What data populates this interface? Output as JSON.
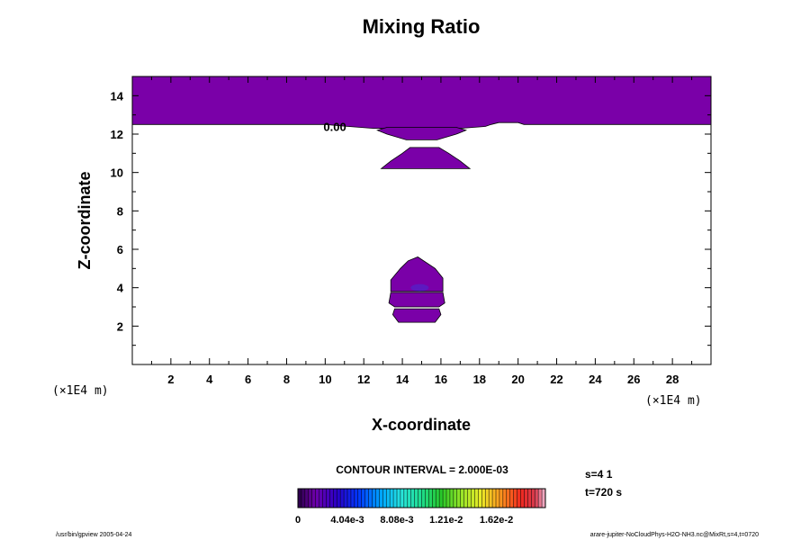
{
  "chart_data": {
    "type": "contour",
    "title": "Mixing Ratio",
    "xlabel": "X-coordinate",
    "ylabel": "Z-coordinate",
    "x_unit": "(×1E4 m)",
    "z_unit": "(×1E4 m)",
    "xlim": [
      0,
      30
    ],
    "ylim": [
      0,
      15
    ],
    "x_ticks": [
      2,
      4,
      6,
      8,
      10,
      12,
      14,
      16,
      18,
      20,
      22,
      24,
      26,
      28
    ],
    "y_ticks": [
      2,
      4,
      6,
      8,
      10,
      12,
      14
    ],
    "contour_label": "0.00",
    "contour_label_pos": [
      10.5,
      12.4
    ],
    "fill_color": "#7a00a8",
    "regions": [
      {
        "name": "upper-layer",
        "points": [
          [
            0,
            15
          ],
          [
            30,
            15
          ],
          [
            30,
            12.5
          ],
          [
            20.3,
            12.5
          ],
          [
            20,
            12.6
          ],
          [
            19,
            12.6
          ],
          [
            18.6,
            12.5
          ],
          [
            18.3,
            12.4
          ],
          [
            17,
            12.3
          ],
          [
            12.5,
            12.3
          ],
          [
            11.2,
            12.4
          ],
          [
            10,
            12.5
          ],
          [
            0,
            12.5
          ]
        ]
      },
      {
        "name": "band-12",
        "points": [
          [
            12.7,
            12.2
          ],
          [
            13.2,
            12.35
          ],
          [
            16.8,
            12.35
          ],
          [
            17.3,
            12.2
          ],
          [
            16.8,
            12.0
          ],
          [
            15.8,
            11.7
          ],
          [
            14.2,
            11.7
          ],
          [
            13.2,
            12.0
          ]
        ]
      },
      {
        "name": "band-10",
        "points": [
          [
            12.9,
            10.2
          ],
          [
            13.4,
            10.6
          ],
          [
            14.0,
            11.0
          ],
          [
            14.4,
            11.3
          ],
          [
            15.9,
            11.3
          ],
          [
            16.4,
            11.0
          ],
          [
            17.0,
            10.6
          ],
          [
            17.5,
            10.2
          ]
        ]
      },
      {
        "name": "cell-upper",
        "points": [
          [
            13.4,
            3.8
          ],
          [
            13.4,
            4.4
          ],
          [
            13.9,
            5.0
          ],
          [
            14.3,
            5.4
          ],
          [
            14.8,
            5.6
          ],
          [
            15.7,
            5.0
          ],
          [
            16.1,
            4.5
          ],
          [
            16.1,
            3.8
          ]
        ]
      },
      {
        "name": "cell-middle",
        "points": [
          [
            13.4,
            3.75
          ],
          [
            16.1,
            3.75
          ],
          [
            16.2,
            3.2
          ],
          [
            15.9,
            3.0
          ],
          [
            13.6,
            3.0
          ],
          [
            13.3,
            3.2
          ]
        ]
      },
      {
        "name": "cell-lower",
        "points": [
          [
            13.6,
            2.9
          ],
          [
            15.9,
            2.9
          ],
          [
            16.0,
            2.6
          ],
          [
            15.7,
            2.2
          ],
          [
            13.8,
            2.2
          ],
          [
            13.5,
            2.6
          ]
        ]
      }
    ],
    "contour_interval_text": "CONTOUR INTERVAL = 2.000E-03",
    "colorbar": {
      "min": 0,
      "max": 0.0202,
      "tick_values": [
        0,
        0.00404,
        0.00808,
        0.0121,
        0.0162
      ],
      "tick_labels": [
        "0",
        "4.04e-3",
        "8.08e-3",
        "1.21e-2",
        "1.62e-2"
      ]
    },
    "info": [
      "s=4 1",
      "t=720 s"
    ]
  },
  "footer": {
    "left": "/usr/bin/gpview 2005-04-24",
    "right": "arare-jupiter-NoCloudPhys-H2O-NH3.nc@MixRt,s=4,t=0720"
  }
}
